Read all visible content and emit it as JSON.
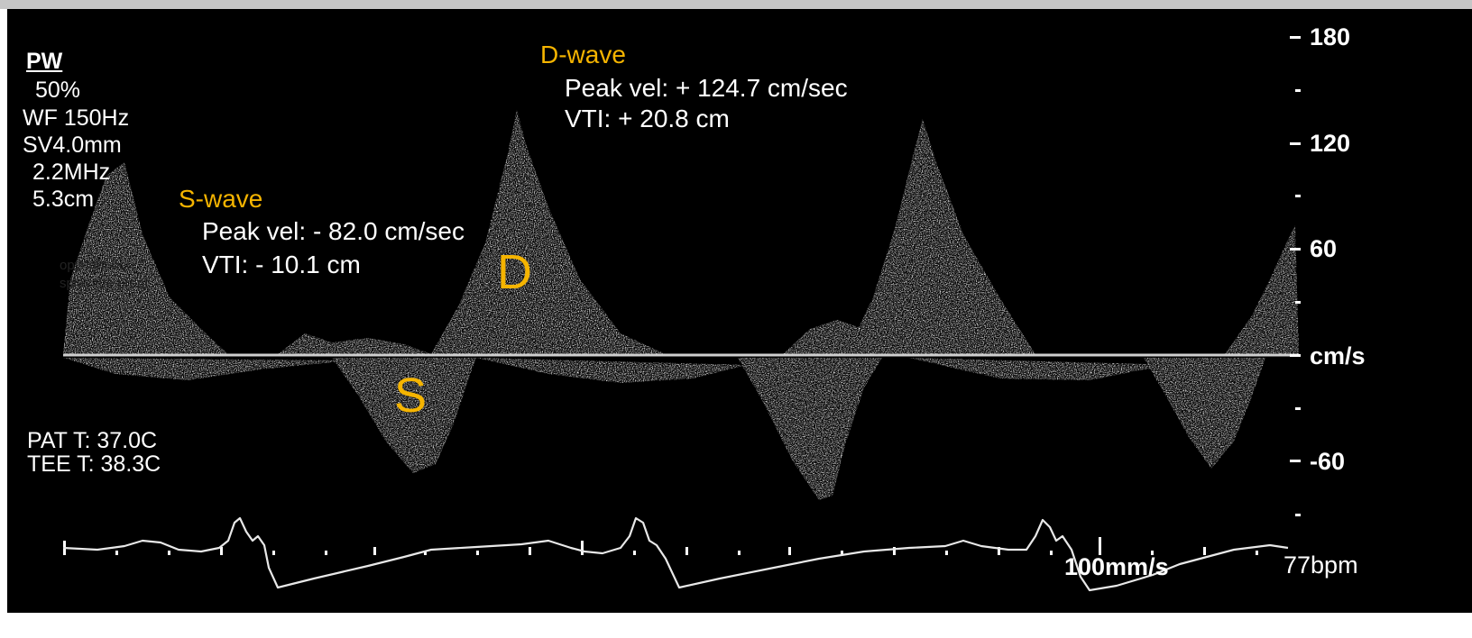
{
  "settings": {
    "mode": "PW",
    "gain": "50%",
    "wall_filter": "WF 150Hz",
    "sample_volume": "SV4.0mm",
    "frequency": "2.2MHz",
    "depth": "5.3cm"
  },
  "temps": {
    "patient": "PAT T: 37.0C",
    "tee": "TEE T: 38.3C"
  },
  "s_wave": {
    "title": "S-wave",
    "peak": "Peak vel: - 82.0 cm/sec",
    "vti": "VTI: - 10.1 cm",
    "marker": "S"
  },
  "d_wave": {
    "title": "D-wave",
    "peak": "Peak vel: + 124.7 cm/sec",
    "vti": "VTI: + 20.8 cm",
    "marker": "D"
  },
  "scale": {
    "labels": [
      "180",
      "120",
      "60",
      "cm/s",
      "-60"
    ],
    "unit": "cm/s"
  },
  "ecg": {
    "sweep_speed": "100mm/s",
    "heart_rate": "77bpm"
  },
  "background_leak": {
    "line1": "opyright hol",
    "line2": "splay the prepr"
  },
  "colors": {
    "annotation": "#f5b400",
    "background": "#000000",
    "text": "#ffffff"
  }
}
